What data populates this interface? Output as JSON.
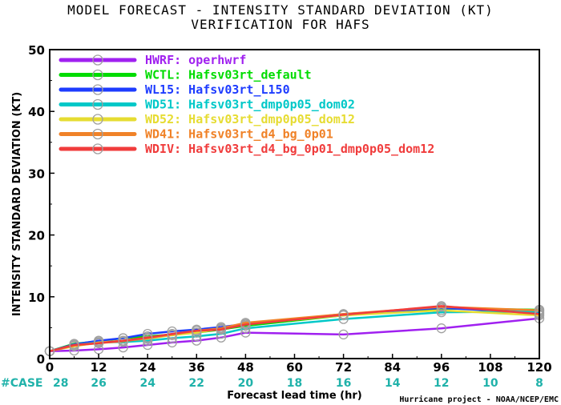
{
  "title_line1": "MODEL FORECAST - INTENSITY STANDARD DEVIATION (KT)",
  "title_line2": "VERIFICATION FOR HAFS",
  "credit": "Hurricane project - NOAA/NCEP/EMC",
  "chart_data": {
    "type": "line",
    "xlabel": "Forecast lead time (hr)",
    "ylabel": "INTENSITY STANDARD DEVIATION (KT)",
    "xlim": [
      0,
      120
    ],
    "ylim": [
      0,
      50
    ],
    "x_ticks": [
      0,
      12,
      24,
      36,
      48,
      60,
      72,
      84,
      96,
      108,
      120
    ],
    "y_ticks": [
      0,
      10,
      20,
      30,
      40,
      50
    ],
    "legend_position": "top-left",
    "case_label": "#CASE",
    "case_counts": [
      {
        "x": 0,
        "n": "28"
      },
      {
        "x": 12,
        "n": "26"
      },
      {
        "x": 24,
        "n": "24"
      },
      {
        "x": 36,
        "n": "22"
      },
      {
        "x": 48,
        "n": "20"
      },
      {
        "x": 60,
        "n": "18"
      },
      {
        "x": 72,
        "n": "16"
      },
      {
        "x": 84,
        "n": "14"
      },
      {
        "x": 96,
        "n": "12"
      },
      {
        "x": 108,
        "n": "10"
      },
      {
        "x": 120,
        "n": "8"
      }
    ],
    "series": [
      {
        "name": "HWRF: operhwrf",
        "color": "#a020f0",
        "x": [
          0,
          6,
          12,
          18,
          24,
          30,
          36,
          42,
          48,
          72,
          96,
          120
        ],
        "y": [
          1.2,
          1.3,
          1.5,
          1.8,
          2.2,
          2.6,
          2.9,
          3.4,
          4.2,
          3.9,
          4.9,
          6.5
        ]
      },
      {
        "name": "WCTL: Hafsv03rt_default",
        "color": "#00dc00",
        "x": [
          0,
          6,
          12,
          18,
          24,
          30,
          36,
          42,
          48,
          72,
          96,
          120
        ],
        "y": [
          1.2,
          2.4,
          2.8,
          3.3,
          3.6,
          3.9,
          4.2,
          4.7,
          5.3,
          7.0,
          8.1,
          7.9
        ]
      },
      {
        "name": "WL15: Hafsv03rt_L150",
        "color": "#1e3cff",
        "x": [
          0,
          6,
          12,
          18,
          24,
          30,
          36,
          42,
          48,
          72,
          96,
          120
        ],
        "y": [
          1.2,
          2.3,
          2.9,
          3.3,
          4.0,
          4.4,
          4.7,
          5.1,
          5.6,
          7.2,
          8.2,
          7.4
        ]
      },
      {
        "name": "WD51: Hafsv03rt_dmp0p05_dom02",
        "color": "#00c8c8",
        "x": [
          0,
          6,
          12,
          18,
          24,
          30,
          36,
          42,
          48,
          72,
          96,
          120
        ],
        "y": [
          1.2,
          2.2,
          2.6,
          2.7,
          2.9,
          3.3,
          3.6,
          4.0,
          4.9,
          6.4,
          7.5,
          7.6
        ]
      },
      {
        "name": "WD52: Hafsv03rt_dmp0p05_dom12",
        "color": "#e6dc32",
        "x": [
          0,
          6,
          12,
          18,
          24,
          30,
          36,
          42,
          48,
          72,
          96,
          120
        ],
        "y": [
          1.2,
          2.0,
          2.6,
          2.9,
          3.2,
          3.8,
          4.2,
          4.8,
          5.6,
          7.0,
          7.8,
          7.0
        ]
      },
      {
        "name": "WD41: Hafsv03rt_d4_bg_0p01",
        "color": "#f08228",
        "x": [
          0,
          6,
          12,
          18,
          24,
          30,
          36,
          42,
          48,
          72,
          96,
          120
        ],
        "y": [
          1.2,
          2.1,
          2.5,
          2.8,
          3.3,
          3.9,
          4.5,
          4.9,
          5.8,
          7.2,
          8.4,
          7.8
        ]
      },
      {
        "name": "WDIV: Hafsv03rt_d4_bg_0p01_dmp0p05_dom12",
        "color": "#f03c3c",
        "x": [
          0,
          6,
          12,
          18,
          24,
          30,
          36,
          42,
          48,
          72,
          96,
          120
        ],
        "y": [
          1.2,
          2.2,
          2.5,
          2.9,
          3.4,
          4.0,
          4.5,
          4.7,
          5.5,
          7.1,
          8.5,
          7.2
        ]
      }
    ]
  }
}
